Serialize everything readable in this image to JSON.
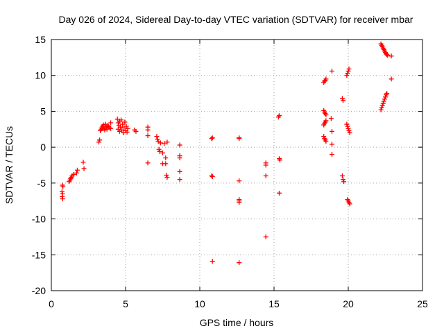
{
  "chart_data": {
    "type": "scatter",
    "title": "Day 026 of 2024, Sidereal Day-to-day VTEC variation (SDTVAR) for receiver mbar",
    "xlabel": "GPS time / hours",
    "ylabel": "SDTVAR / TECUs",
    "xlim": [
      0,
      25
    ],
    "ylim": [
      -20,
      15
    ],
    "xticks": [
      "0",
      "5",
      "10",
      "15",
      "20",
      "25"
    ],
    "yticks": [
      "-20",
      "-15",
      "-10",
      "-5",
      "0",
      "5",
      "10",
      "15"
    ],
    "grid": true,
    "marker": "+",
    "marker_color": "#ff0000",
    "series": [
      {
        "name": "SDTVAR",
        "points": [
          [
            0.75,
            -5.3
          ],
          [
            0.78,
            -5.5
          ],
          [
            0.72,
            -6.2
          ],
          [
            0.75,
            -6.5
          ],
          [
            0.73,
            -6.9
          ],
          [
            0.76,
            -7.2
          ],
          [
            1.2,
            -4.8
          ],
          [
            1.25,
            -4.6
          ],
          [
            1.3,
            -4.4
          ],
          [
            1.35,
            -4.2
          ],
          [
            1.4,
            -4.0
          ],
          [
            1.5,
            -3.8
          ],
          [
            1.7,
            -3.6
          ],
          [
            1.75,
            -3.2
          ],
          [
            2.15,
            -2.1
          ],
          [
            2.2,
            -3.0
          ],
          [
            3.2,
            0.7
          ],
          [
            3.25,
            1.0
          ],
          [
            3.3,
            2.3
          ],
          [
            3.35,
            2.5
          ],
          [
            3.4,
            2.7
          ],
          [
            3.45,
            2.9
          ],
          [
            3.5,
            3.1
          ],
          [
            3.55,
            2.6
          ],
          [
            3.6,
            2.4
          ],
          [
            3.65,
            3.2
          ],
          [
            3.7,
            2.8
          ],
          [
            3.75,
            2.5
          ],
          [
            3.8,
            3.0
          ],
          [
            3.85,
            2.9
          ],
          [
            3.9,
            2.7
          ],
          [
            4.0,
            3.4
          ],
          [
            4.0,
            2.6
          ],
          [
            4.45,
            3.9
          ],
          [
            4.5,
            3.4
          ],
          [
            4.5,
            2.5
          ],
          [
            4.55,
            3.0
          ],
          [
            4.6,
            2.2
          ],
          [
            4.6,
            3.6
          ],
          [
            4.65,
            2.8
          ],
          [
            4.7,
            3.8
          ],
          [
            4.75,
            2.4
          ],
          [
            4.8,
            3.2
          ],
          [
            4.85,
            2.0
          ],
          [
            4.9,
            2.7
          ],
          [
            4.95,
            3.5
          ],
          [
            5.0,
            2.3
          ],
          [
            5.05,
            2.9
          ],
          [
            5.1,
            2.1
          ],
          [
            5.15,
            2.6
          ],
          [
            5.6,
            2.4
          ],
          [
            5.7,
            2.2
          ],
          [
            6.5,
            2.8
          ],
          [
            6.5,
            2.4
          ],
          [
            6.5,
            1.6
          ],
          [
            6.5,
            -2.2
          ],
          [
            7.1,
            1.5
          ],
          [
            7.15,
            1.1
          ],
          [
            7.2,
            0.8
          ],
          [
            7.25,
            -0.3
          ],
          [
            7.3,
            -0.6
          ],
          [
            7.35,
            0.6
          ],
          [
            7.5,
            -0.8
          ],
          [
            7.5,
            -2.3
          ],
          [
            7.6,
            0.5
          ],
          [
            7.7,
            -1.5
          ],
          [
            7.7,
            -2.3
          ],
          [
            7.75,
            -3.9
          ],
          [
            7.8,
            -4.2
          ],
          [
            7.8,
            0.7
          ],
          [
            8.65,
            0.3
          ],
          [
            8.65,
            -1.2
          ],
          [
            8.65,
            -1.5
          ],
          [
            8.65,
            -3.4
          ],
          [
            8.65,
            -4.5
          ],
          [
            10.8,
            1.2
          ],
          [
            10.85,
            1.3
          ],
          [
            10.8,
            -4.0
          ],
          [
            10.85,
            -4.1
          ],
          [
            10.85,
            -15.9
          ],
          [
            12.65,
            1.3
          ],
          [
            12.65,
            1.2
          ],
          [
            12.65,
            -4.7
          ],
          [
            12.65,
            -7.3
          ],
          [
            12.65,
            -7.5
          ],
          [
            12.65,
            -7.7
          ],
          [
            12.65,
            -16.1
          ],
          [
            14.45,
            -2.2
          ],
          [
            14.45,
            -2.5
          ],
          [
            14.45,
            -4.0
          ],
          [
            14.45,
            -12.5
          ],
          [
            15.3,
            4.2
          ],
          [
            15.35,
            4.4
          ],
          [
            15.35,
            -1.6
          ],
          [
            15.4,
            -1.8
          ],
          [
            15.35,
            -6.4
          ],
          [
            18.35,
            9.0
          ],
          [
            18.4,
            9.2
          ],
          [
            18.45,
            9.3
          ],
          [
            18.5,
            9.5
          ],
          [
            18.35,
            5.1
          ],
          [
            18.4,
            4.9
          ],
          [
            18.45,
            4.7
          ],
          [
            18.5,
            4.5
          ],
          [
            18.35,
            3.1
          ],
          [
            18.4,
            3.3
          ],
          [
            18.45,
            3.5
          ],
          [
            18.5,
            3.7
          ],
          [
            18.35,
            1.5
          ],
          [
            18.4,
            1.2
          ],
          [
            18.45,
            1.0
          ],
          [
            18.5,
            0.8
          ],
          [
            18.9,
            10.6
          ],
          [
            18.85,
            4.0
          ],
          [
            18.9,
            2.2
          ],
          [
            18.9,
            0.4
          ],
          [
            18.9,
            -1.0
          ],
          [
            19.6,
            6.8
          ],
          [
            19.65,
            6.5
          ],
          [
            19.6,
            -4.0
          ],
          [
            19.65,
            -4.5
          ],
          [
            19.7,
            -4.8
          ],
          [
            19.9,
            10.0
          ],
          [
            19.95,
            10.3
          ],
          [
            20.0,
            10.6
          ],
          [
            20.05,
            10.9
          ],
          [
            19.9,
            3.2
          ],
          [
            19.95,
            2.9
          ],
          [
            20.0,
            2.6
          ],
          [
            20.05,
            2.3
          ],
          [
            20.1,
            2.0
          ],
          [
            19.95,
            -7.3
          ],
          [
            20.0,
            -7.5
          ],
          [
            20.05,
            -7.7
          ],
          [
            20.1,
            -7.9
          ],
          [
            22.2,
            14.4
          ],
          [
            22.25,
            14.2
          ],
          [
            22.3,
            14.0
          ],
          [
            22.35,
            13.8
          ],
          [
            22.4,
            13.6
          ],
          [
            22.45,
            13.4
          ],
          [
            22.5,
            13.2
          ],
          [
            22.55,
            13.0
          ],
          [
            22.6,
            12.9
          ],
          [
            22.65,
            12.8
          ],
          [
            22.9,
            12.7
          ],
          [
            22.2,
            5.2
          ],
          [
            22.25,
            5.5
          ],
          [
            22.3,
            5.8
          ],
          [
            22.35,
            6.1
          ],
          [
            22.4,
            6.4
          ],
          [
            22.45,
            6.7
          ],
          [
            22.5,
            7.0
          ],
          [
            22.55,
            7.3
          ],
          [
            22.6,
            7.5
          ],
          [
            22.9,
            9.5
          ]
        ]
      }
    ]
  }
}
